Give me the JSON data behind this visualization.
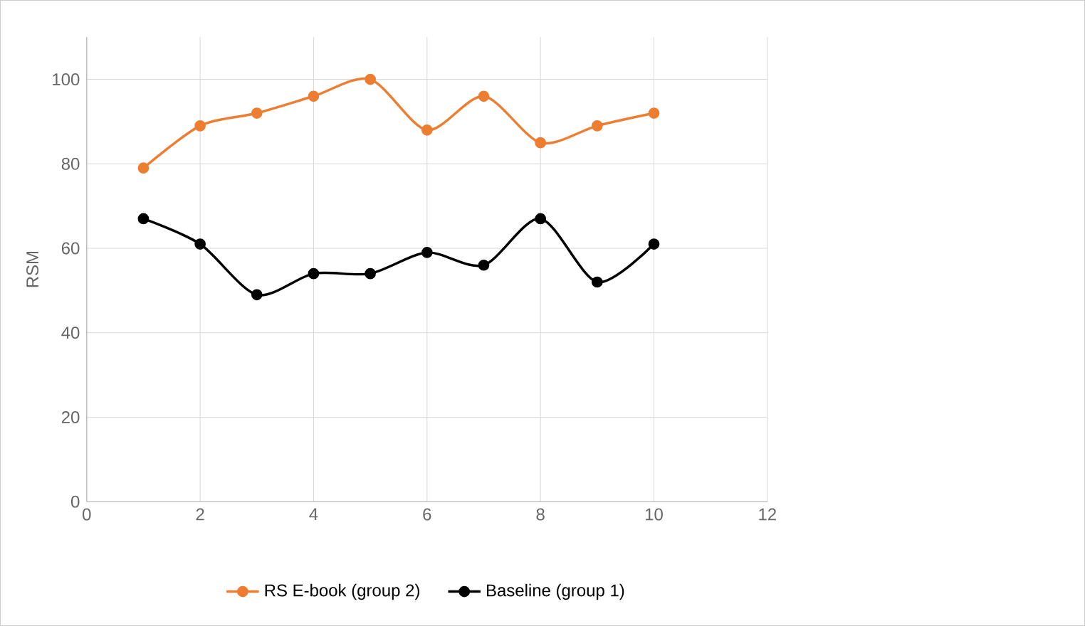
{
  "chart_data": {
    "type": "line",
    "ylabel": "RSM",
    "x": [
      1,
      2,
      3,
      4,
      5,
      6,
      7,
      8,
      9,
      10
    ],
    "series": [
      {
        "name": "RS E-book (group 2)",
        "color": "#ed7d31",
        "values": [
          79,
          89,
          92,
          96,
          100,
          88,
          96,
          85,
          89,
          92
        ]
      },
      {
        "name": "Baseline (group 1)",
        "color": "#000000",
        "values": [
          67,
          61,
          49,
          54,
          54,
          59,
          56,
          67,
          52,
          61
        ]
      }
    ],
    "xlim": [
      0,
      12
    ],
    "xticks": [
      0,
      2,
      4,
      6,
      8,
      10,
      12
    ],
    "ylim": [
      0,
      110
    ],
    "yticks": [
      0,
      20,
      40,
      60,
      80,
      100
    ],
    "grid": true,
    "legend": "bottom",
    "marker": "circle",
    "line_style": "solid"
  }
}
